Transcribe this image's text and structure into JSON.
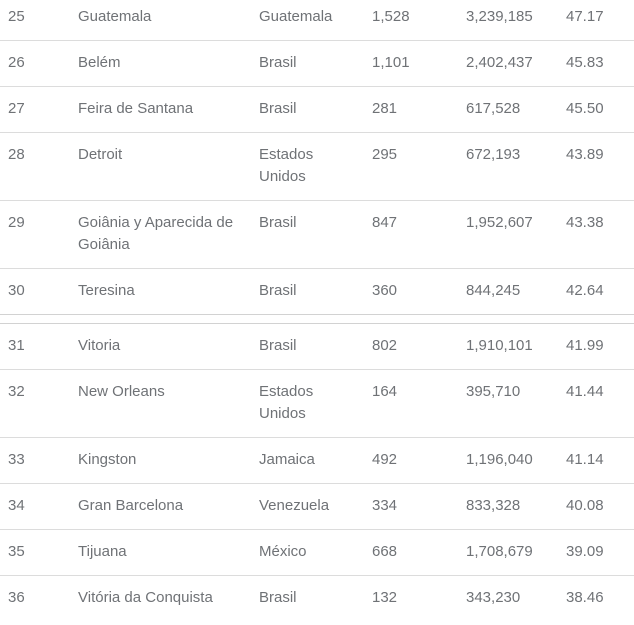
{
  "colors": {
    "text": "#6F7276",
    "row_divider": "#DCDCDC",
    "section_border": "#D2D2D2",
    "background": "#FFFFFF"
  },
  "table": {
    "columns": [
      "rank",
      "city",
      "country",
      "count",
      "population",
      "rate"
    ],
    "sections": [
      {
        "rows": [
          {
            "rank": "25",
            "city": "Guatemala",
            "country": "Guatemala",
            "count": "1,528",
            "population": "3,239,185",
            "rate": "47.17"
          },
          {
            "rank": "26",
            "city": "Belém",
            "country": "Brasil",
            "count": "1,101",
            "population": "2,402,437",
            "rate": "45.83"
          },
          {
            "rank": "27",
            "city": "Feira de Santana",
            "country": "Brasil",
            "count": "281",
            "population": "617,528",
            "rate": "45.50"
          },
          {
            "rank": "28",
            "city": "Detroit",
            "country": "Estados Unidos",
            "count": "295",
            "population": "672,193",
            "rate": "43.89"
          },
          {
            "rank": "29",
            "city": "Goiânia y Aparecida de Goiânia",
            "country": "Brasil",
            "count": "847",
            "population": "1,952,607",
            "rate": "43.38"
          },
          {
            "rank": "30",
            "city": "Teresina",
            "country": "Brasil",
            "count": "360",
            "population": "844,245",
            "rate": "42.64"
          }
        ]
      },
      {
        "rows": [
          {
            "rank": "31",
            "city": "Vitoria",
            "country": "Brasil",
            "count": "802",
            "population": "1,910,101",
            "rate": "41.99"
          },
          {
            "rank": "32",
            "city": "New Orleans",
            "country": "Estados Unidos",
            "count": "164",
            "population": "395,710",
            "rate": "41.44"
          },
          {
            "rank": "33",
            "city": "Kingston",
            "country": "Jamaica",
            "count": "492",
            "population": "1,196,040",
            "rate": "41.14"
          },
          {
            "rank": "34",
            "city": "Gran Barcelona",
            "country": "Venezuela",
            "count": "334",
            "population": "833,328",
            "rate": "40.08"
          },
          {
            "rank": "35",
            "city": "Tijuana",
            "country": "México",
            "count": "668",
            "population": "1,708,679",
            "rate": "39.09"
          },
          {
            "rank": "36",
            "city": "Vitória da Conquista",
            "country": "Brasil",
            "count": "132",
            "population": "343,230",
            "rate": "38.46"
          }
        ]
      }
    ]
  }
}
